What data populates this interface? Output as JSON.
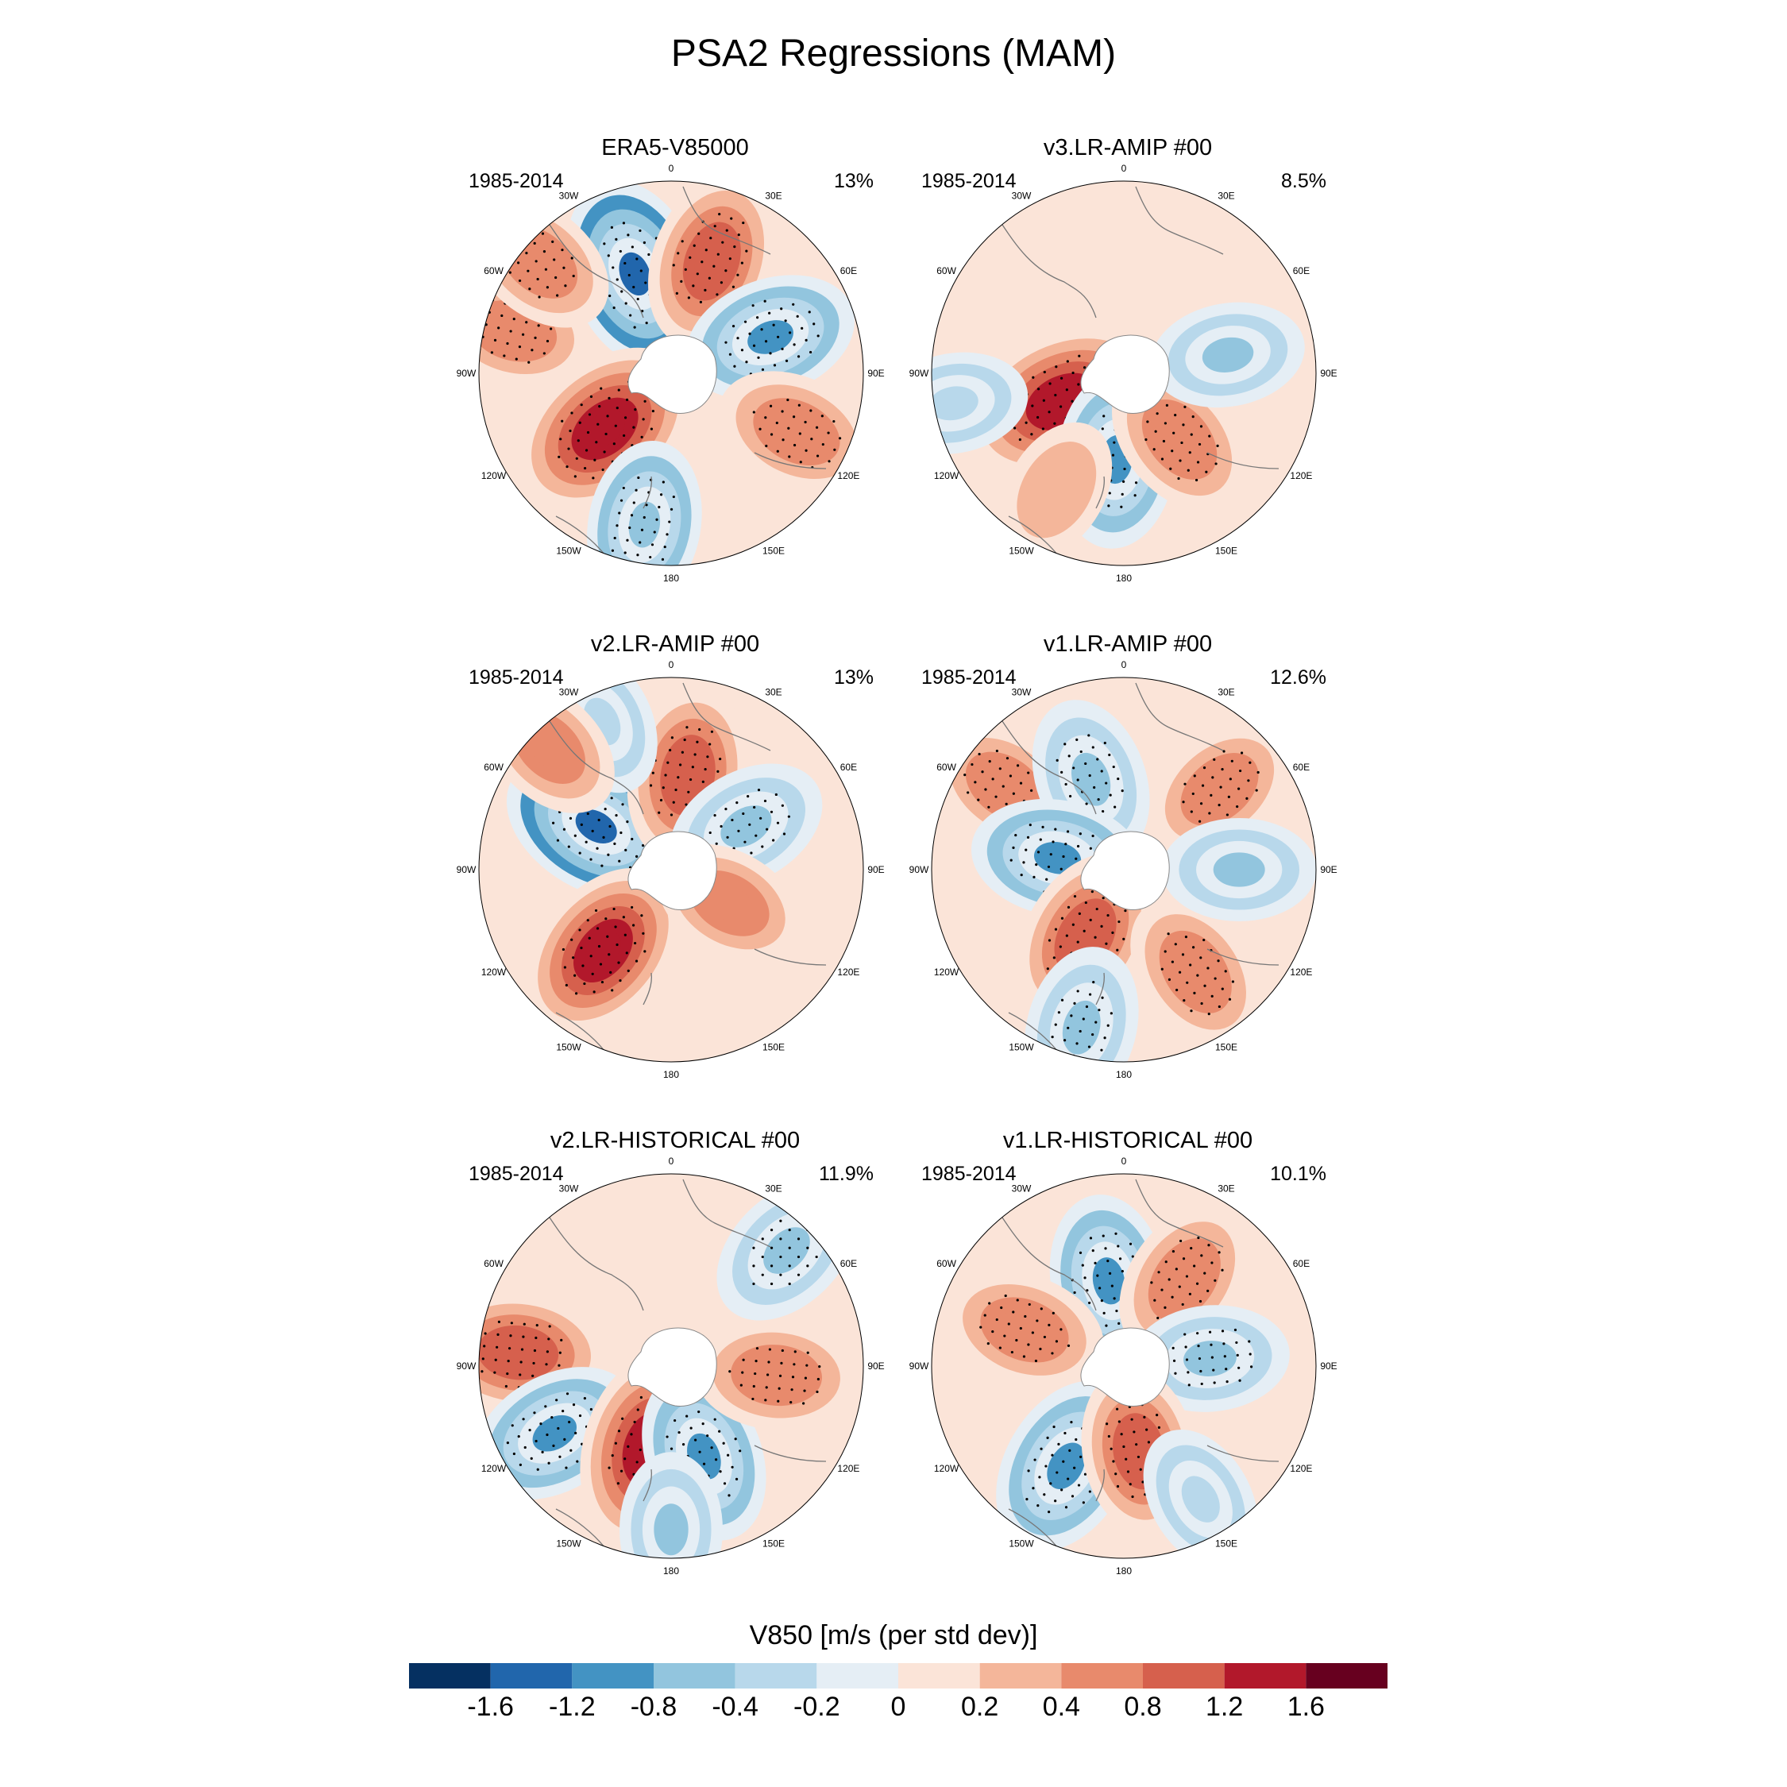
{
  "title": "PSA2 Regressions (MAM)",
  "chart_data": {
    "type": "heatmap",
    "title": "PSA2 Regressions (MAM)",
    "projection": "south-polar-stereographic",
    "longitude_labels": [
      "0",
      "30E",
      "60E",
      "90E",
      "120E",
      "150E",
      "180",
      "150W",
      "120W",
      "90W",
      "60W",
      "30W"
    ],
    "panels": [
      {
        "name": "ERA5-V85000",
        "period": "1985-2014",
        "variance_explained": "13%",
        "anomalies": [
          {
            "lon": -20,
            "r": 0.55,
            "value": -1.3
          },
          {
            "lon": 20,
            "r": 0.62,
            "value": 1.0
          },
          {
            "lon": 70,
            "r": 0.55,
            "value": -0.9
          },
          {
            "lon": 115,
            "r": 0.72,
            "value": 0.7
          },
          {
            "lon": -130,
            "r": 0.45,
            "value": 1.4
          },
          {
            "lon": -170,
            "r": 0.8,
            "value": -0.8
          },
          {
            "lon": -75,
            "r": 0.85,
            "value": 0.6
          },
          {
            "lon": -50,
            "r": 0.9,
            "value": 0.6
          }
        ]
      },
      {
        "name": "v3.LR-AMIP  #00",
        "period": "1985-2014",
        "variance_explained": "8.5%",
        "anomalies": [
          {
            "lon": -115,
            "r": 0.35,
            "value": 1.5
          },
          {
            "lon": -175,
            "r": 0.45,
            "value": -1.0
          },
          {
            "lon": 140,
            "r": 0.45,
            "value": 0.7
          },
          {
            "lon": 80,
            "r": 0.55,
            "value": -0.5
          },
          {
            "lon": -100,
            "r": 0.9,
            "value": -0.4
          },
          {
            "lon": -150,
            "r": 0.7,
            "value": 0.3
          }
        ]
      },
      {
        "name": "v2.LR-AMIP  #00",
        "period": "1985-2014",
        "variance_explained": "13%",
        "anomalies": [
          {
            "lon": -60,
            "r": 0.45,
            "value": -1.3
          },
          {
            "lon": 10,
            "r": 0.5,
            "value": 1.0
          },
          {
            "lon": 60,
            "r": 0.45,
            "value": -0.7
          },
          {
            "lon": -140,
            "r": 0.55,
            "value": 1.2
          },
          {
            "lon": 120,
            "r": 0.35,
            "value": 0.5
          },
          {
            "lon": -25,
            "r": 0.85,
            "value": -0.4
          },
          {
            "lon": -45,
            "r": 0.9,
            "value": 0.5
          }
        ]
      },
      {
        "name": "v1.LR-AMIP  #00",
        "period": "1985-2014",
        "variance_explained": "12.6%",
        "anomalies": [
          {
            "lon": -55,
            "r": 0.75,
            "value": 0.6
          },
          {
            "lon": -20,
            "r": 0.5,
            "value": -0.7
          },
          {
            "lon": 50,
            "r": 0.65,
            "value": 0.6
          },
          {
            "lon": -80,
            "r": 0.35,
            "value": -0.9
          },
          {
            "lon": -150,
            "r": 0.4,
            "value": 1.0
          },
          {
            "lon": -165,
            "r": 0.85,
            "value": -0.7
          },
          {
            "lon": 145,
            "r": 0.65,
            "value": 0.7
          },
          {
            "lon": 90,
            "r": 0.6,
            "value": -0.5
          }
        ]
      },
      {
        "name": "v2.LR-HISTORICAL  #00",
        "period": "1985-2014",
        "variance_explained": "11.9%",
        "anomalies": [
          {
            "lon": -85,
            "r": 0.8,
            "value": 1.0
          },
          {
            "lon": -120,
            "r": 0.7,
            "value": -0.9
          },
          {
            "lon": -165,
            "r": 0.45,
            "value": 1.4
          },
          {
            "lon": 160,
            "r": 0.5,
            "value": -0.9
          },
          {
            "lon": 95,
            "r": 0.55,
            "value": 0.7
          },
          {
            "lon": 45,
            "r": 0.85,
            "value": -0.7
          },
          {
            "lon": 180,
            "r": 0.85,
            "value": -0.5
          }
        ]
      },
      {
        "name": "v1.LR-HISTORICAL  #00",
        "period": "1985-2014",
        "variance_explained": "10.1%",
        "anomalies": [
          {
            "lon": -10,
            "r": 0.45,
            "value": -0.9
          },
          {
            "lon": 35,
            "r": 0.55,
            "value": 0.7
          },
          {
            "lon": -70,
            "r": 0.55,
            "value": 0.7
          },
          {
            "lon": 85,
            "r": 0.45,
            "value": -0.6
          },
          {
            "lon": -150,
            "r": 0.6,
            "value": -1.1
          },
          {
            "lon": 170,
            "r": 0.45,
            "value": 0.8
          },
          {
            "lon": 150,
            "r": 0.8,
            "value": -0.4
          }
        ]
      }
    ],
    "colorbar": {
      "title": "V850 [m/s (per std dev)]",
      "tick_labels": [
        "-1.6",
        "-1.2",
        "-0.8",
        "-0.4",
        "-0.2",
        "0",
        "0.2",
        "0.4",
        "0.8",
        "1.2",
        "1.6"
      ],
      "colors": [
        "#053061",
        "#2166ac",
        "#4393c3",
        "#92c5de",
        "#b8d8eb",
        "#e5eef5",
        "#fbe4d8",
        "#f4b69a",
        "#e88a6c",
        "#d6604d",
        "#b2182b",
        "#67001f"
      ]
    }
  }
}
